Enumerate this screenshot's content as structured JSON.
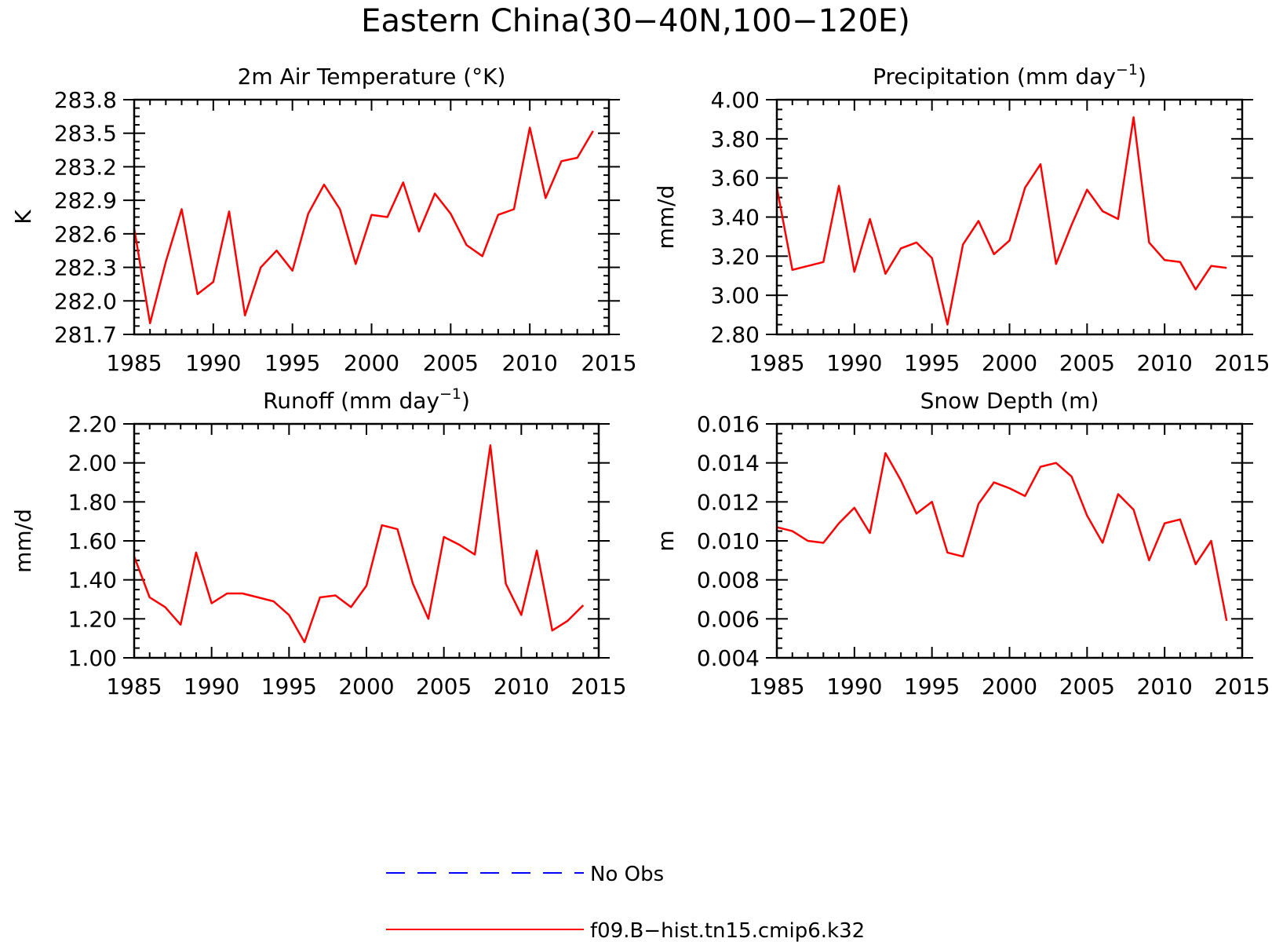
{
  "figure": {
    "title": "Eastern China(30−40N,100−120E)"
  },
  "chart_data": [
    {
      "type": "line",
      "title": "2m Air Temperature (°K)",
      "xlabel": "",
      "ylabel": "K",
      "xlim": [
        1985,
        2015
      ],
      "ylim": [
        281.7,
        283.8
      ],
      "xticks": [
        "1985",
        "1990",
        "1995",
        "2000",
        "2005",
        "2010",
        "2015"
      ],
      "yticks": [
        "281.7",
        "282.0",
        "282.3",
        "282.6",
        "282.9",
        "283.2",
        "283.5",
        "283.8"
      ],
      "x": [
        1985,
        1986,
        1987,
        1988,
        1989,
        1990,
        1991,
        1992,
        1993,
        1994,
        1995,
        1996,
        1997,
        1998,
        1999,
        2000,
        2001,
        2002,
        2003,
        2004,
        2005,
        2006,
        2007,
        2008,
        2009,
        2010,
        2011,
        2012,
        2013,
        2014
      ],
      "series": [
        {
          "name": "f09.B−hist.tn15.cmip6.k32",
          "color": "#ff0000",
          "values": [
            282.65,
            281.8,
            282.35,
            282.82,
            282.06,
            282.17,
            282.8,
            281.87,
            282.3,
            282.45,
            282.27,
            282.78,
            283.04,
            282.82,
            282.33,
            282.77,
            282.75,
            283.06,
            282.62,
            282.96,
            282.78,
            282.5,
            282.4,
            282.77,
            282.82,
            283.55,
            282.92,
            283.25,
            283.28,
            283.52
          ]
        }
      ],
      "grid": false
    },
    {
      "type": "line",
      "title": "Precipitation (mm day",
      "title_sup": "−1",
      "title_end": ")",
      "xlabel": "",
      "ylabel": "mm/d",
      "xlim": [
        1985,
        2015
      ],
      "ylim": [
        2.8,
        4.0
      ],
      "xticks": [
        "1985",
        "1990",
        "1995",
        "2000",
        "2005",
        "2010",
        "2015"
      ],
      "yticks": [
        "2.80",
        "3.00",
        "3.20",
        "3.40",
        "3.60",
        "3.80",
        "4.00"
      ],
      "x": [
        1985,
        1986,
        1987,
        1988,
        1989,
        1990,
        1991,
        1992,
        1993,
        1994,
        1995,
        1996,
        1997,
        1998,
        1999,
        2000,
        2001,
        2002,
        2003,
        2004,
        2005,
        2006,
        2007,
        2008,
        2009,
        2010,
        2011,
        2012,
        2013,
        2014
      ],
      "series": [
        {
          "name": "f09.B−hist.tn15.cmip6.k32",
          "color": "#ff0000",
          "values": [
            3.55,
            3.13,
            3.15,
            3.17,
            3.56,
            3.12,
            3.39,
            3.11,
            3.24,
            3.27,
            3.19,
            2.85,
            3.26,
            3.38,
            3.21,
            3.28,
            3.55,
            3.67,
            3.16,
            3.36,
            3.54,
            3.43,
            3.39,
            3.91,
            3.27,
            3.18,
            3.17,
            3.03,
            3.15,
            3.14
          ]
        }
      ],
      "grid": false
    },
    {
      "type": "line",
      "title": "Runoff (mm day",
      "title_sup": "−1",
      "title_end": ")",
      "xlabel": "",
      "ylabel": "mm/d",
      "xlim": [
        1985,
        2015
      ],
      "ylim": [
        1.0,
        2.2
      ],
      "xticks": [
        "1985",
        "1990",
        "1995",
        "2000",
        "2005",
        "2010",
        "2015"
      ],
      "yticks": [
        "1.00",
        "1.20",
        "1.40",
        "1.60",
        "1.80",
        "2.00",
        "2.20"
      ],
      "x": [
        1985,
        1986,
        1987,
        1988,
        1989,
        1990,
        1991,
        1992,
        1993,
        1994,
        1995,
        1996,
        1997,
        1998,
        1999,
        2000,
        2001,
        2002,
        2003,
        2004,
        2005,
        2006,
        2007,
        2008,
        2009,
        2010,
        2011,
        2012,
        2013,
        2014
      ],
      "series": [
        {
          "name": "f09.B−hist.tn15.cmip6.k32",
          "color": "#ff0000",
          "values": [
            1.52,
            1.31,
            1.26,
            1.17,
            1.54,
            1.28,
            1.33,
            1.33,
            1.31,
            1.29,
            1.22,
            1.08,
            1.31,
            1.32,
            1.26,
            1.37,
            1.68,
            1.66,
            1.38,
            1.2,
            1.62,
            1.58,
            1.53,
            2.09,
            1.38,
            1.22,
            1.55,
            1.14,
            1.19,
            1.27
          ]
        }
      ],
      "grid": false
    },
    {
      "type": "line",
      "title": "Snow Depth (m)",
      "xlabel": "",
      "ylabel": "m",
      "xlim": [
        1985,
        2015
      ],
      "ylim": [
        0.004,
        0.016
      ],
      "xticks": [
        "1985",
        "1990",
        "1995",
        "2000",
        "2005",
        "2010",
        "2015"
      ],
      "yticks": [
        "0.004",
        "0.006",
        "0.008",
        "0.010",
        "0.012",
        "0.014",
        "0.016"
      ],
      "x": [
        1985,
        1986,
        1987,
        1988,
        1989,
        1990,
        1991,
        1992,
        1993,
        1994,
        1995,
        1996,
        1997,
        1998,
        1999,
        2000,
        2001,
        2002,
        2003,
        2004,
        2005,
        2006,
        2007,
        2008,
        2009,
        2010,
        2011,
        2012,
        2013,
        2014
      ],
      "series": [
        {
          "name": "f09.B−hist.tn15.cmip6.k32",
          "color": "#ff0000",
          "values": [
            0.0107,
            0.0105,
            0.01,
            0.0099,
            0.0109,
            0.0117,
            0.0104,
            0.0145,
            0.0131,
            0.0114,
            0.012,
            0.0094,
            0.0092,
            0.0119,
            0.013,
            0.0127,
            0.0123,
            0.0138,
            0.014,
            0.0133,
            0.0113,
            0.0099,
            0.0124,
            0.0116,
            0.009,
            0.0109,
            0.0111,
            0.0088,
            0.01,
            0.0059
          ]
        }
      ],
      "grid": false
    }
  ],
  "legend": {
    "position": "bottom-center",
    "items": [
      {
        "label": "No Obs",
        "color": "#0000ff",
        "style": "dashed"
      },
      {
        "label": "f09.B−hist.tn15.cmip6.k32",
        "color": "#ff0000",
        "style": "solid"
      }
    ]
  }
}
